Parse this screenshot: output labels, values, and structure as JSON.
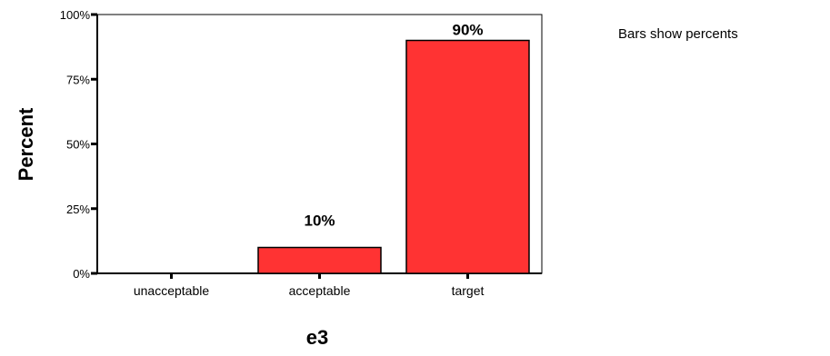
{
  "chart_data": {
    "type": "bar",
    "categories": [
      "unacceptable",
      "acceptable",
      "target"
    ],
    "values": [
      0,
      10,
      90
    ],
    "value_labels": [
      "",
      "10%",
      "90%"
    ],
    "xlabel": "e3",
    "ylabel": "Percent",
    "ylim": [
      0,
      100
    ],
    "y_ticks": [
      "0%",
      "25%",
      "50%",
      "75%",
      "100%"
    ],
    "y_tick_values": [
      0,
      25,
      50,
      75,
      100
    ],
    "note": "Bars show percents",
    "bar_color": "#ff3333",
    "grid": false,
    "legend": "none"
  }
}
